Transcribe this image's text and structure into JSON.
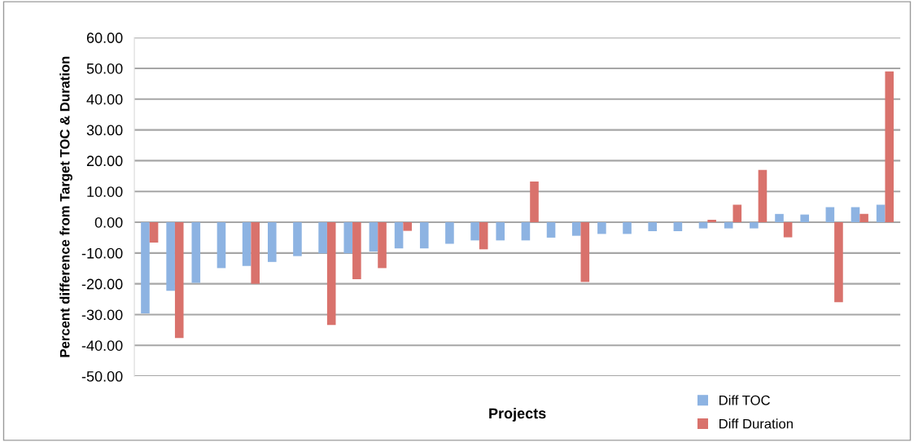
{
  "chart_data": {
    "type": "bar",
    "xlabel": "Projects",
    "ylabel": "Percent difference from Target TOC & Duration",
    "categories": [
      null,
      null,
      null,
      null,
      null,
      null,
      null,
      null,
      null,
      null,
      null,
      null,
      null,
      null,
      null,
      null,
      null,
      null,
      null,
      null,
      null,
      null,
      null,
      null,
      null,
      null,
      null,
      null,
      null,
      null
    ],
    "series": [
      {
        "name": "Diff TOC",
        "color": "#8db3e2",
        "values": [
          -29.6,
          -22.3,
          -19.7,
          -14.9,
          -14.2,
          -12.9,
          -11.0,
          -10.1,
          -10.1,
          -9.5,
          -8.5,
          -8.5,
          -7.0,
          -5.9,
          -5.9,
          -5.9,
          -5.0,
          -4.4,
          -3.8,
          -3.8,
          -2.9,
          -2.9,
          -2.0,
          -2.0,
          -2.0,
          2.7,
          2.5,
          4.9,
          4.9,
          5.7
        ]
      },
      {
        "name": "Diff Duration",
        "color": "#d9726c",
        "values": [
          -6.6,
          -37.6,
          null,
          null,
          -20.0,
          null,
          null,
          -33.4,
          -18.5,
          -14.9,
          -2.8,
          null,
          null,
          -8.8,
          null,
          13.2,
          null,
          -19.4,
          null,
          null,
          null,
          null,
          0.8,
          5.7,
          17.0,
          -4.9,
          null,
          -26.0,
          2.7,
          49.0
        ]
      }
    ],
    "ylim": [
      -50,
      60
    ],
    "yticks": [
      {
        "value": -50,
        "label": "-50.00"
      },
      {
        "value": -40,
        "label": "-40.00"
      },
      {
        "value": -30,
        "label": "-30.00"
      },
      {
        "value": -20,
        "label": "-20.00"
      },
      {
        "value": -10,
        "label": "-10.00"
      },
      {
        "value": 0,
        "label": "0.00"
      },
      {
        "value": 10,
        "label": "10.00"
      },
      {
        "value": 20,
        "label": "20.00"
      },
      {
        "value": 30,
        "label": "30.00"
      },
      {
        "value": 40,
        "label": "40.00"
      },
      {
        "value": 50,
        "label": "50.00"
      },
      {
        "value": 60,
        "label": "60.00"
      }
    ],
    "grid": "y",
    "legend": "bottom right",
    "tick_labels": "y"
  }
}
